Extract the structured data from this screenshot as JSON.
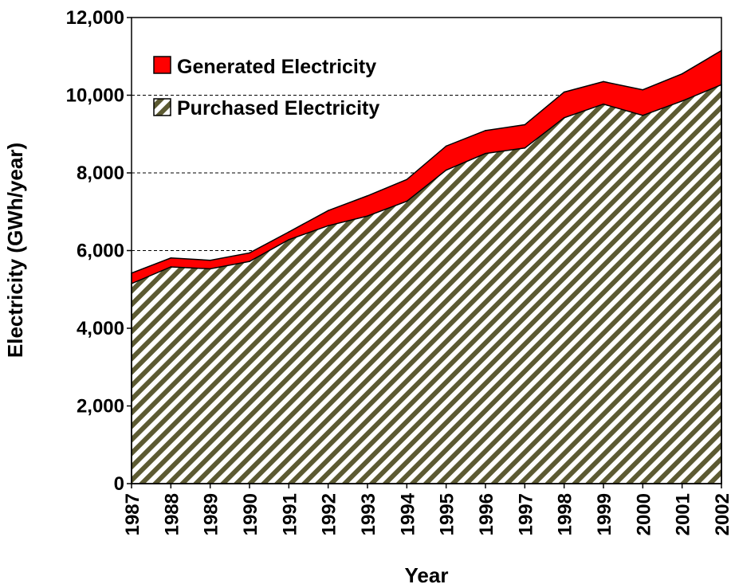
{
  "chart_data": {
    "type": "area",
    "stacked": true,
    "title": "",
    "xlabel": "Year",
    "ylabel": "Electricity (GWh/year)",
    "x": [
      "1987",
      "1988",
      "1989",
      "1990",
      "1991",
      "1992",
      "1993",
      "1994",
      "1995",
      "1996",
      "1997",
      "1998",
      "1999",
      "2000",
      "2001",
      "2002"
    ],
    "ylim": [
      0,
      12000
    ],
    "yticks": [
      "0",
      "2,000",
      "4,000",
      "6,000",
      "8,000",
      "10,000",
      "12,000"
    ],
    "ytick_values": [
      0,
      2000,
      4000,
      6000,
      8000,
      10000,
      12000
    ],
    "grid": "horizontal dashed",
    "legend_position": "top-left",
    "series": [
      {
        "name": "Purchased Electricity",
        "pattern": "diagonal-hatch",
        "color": "#5c5a32",
        "values": [
          5150,
          5580,
          5530,
          5720,
          6280,
          6640,
          6890,
          7270,
          8070,
          8500,
          8640,
          9420,
          9770,
          9480,
          9850,
          10270
        ]
      },
      {
        "name": "Generated Electricity",
        "color": "#ff0000",
        "values": [
          270,
          230,
          220,
          220,
          200,
          390,
          520,
          560,
          620,
          590,
          600,
          660,
          580,
          660,
          700,
          880
        ]
      }
    ]
  }
}
